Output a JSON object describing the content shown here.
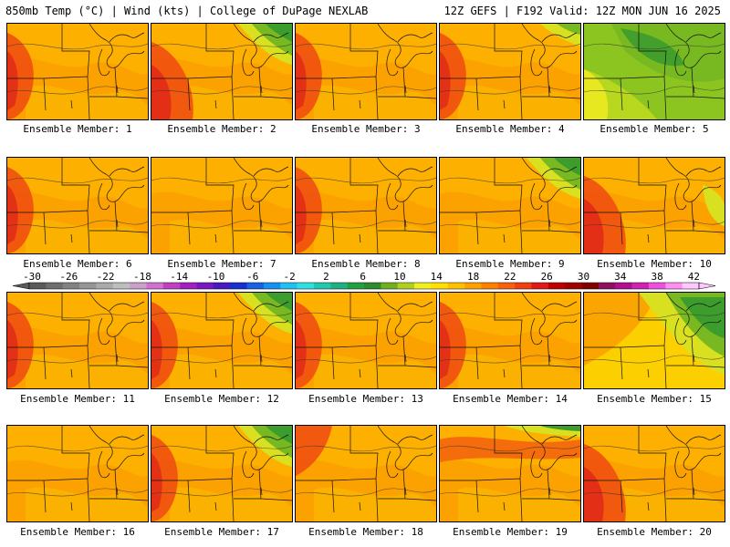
{
  "header": {
    "left": "850mb Temp (°C) | Wind (kts) | College of DuPage NEXLAB",
    "right": "12Z GEFS | F192 Valid: 12Z MON JUN 16 2025"
  },
  "panels": [
    {
      "label": "Ensemble Member: 1",
      "theme": "orange",
      "hot": "west",
      "green": "none"
    },
    {
      "label": "Ensemble Member: 2",
      "theme": "orange",
      "hot": "southwest",
      "green": "ne"
    },
    {
      "label": "Ensemble Member: 3",
      "theme": "orange",
      "hot": "west",
      "green": "none"
    },
    {
      "label": "Ensemble Member: 4",
      "theme": "orange",
      "hot": "west",
      "green": "ne-small"
    },
    {
      "label": "Ensemble Member: 5",
      "theme": "green",
      "hot": "none",
      "green": "all"
    },
    {
      "label": "Ensemble Member: 6",
      "theme": "orange",
      "hot": "west",
      "green": "none"
    },
    {
      "label": "Ensemble Member: 7",
      "theme": "orange",
      "hot": "none",
      "green": "none"
    },
    {
      "label": "Ensemble Member: 8",
      "theme": "orange",
      "hot": "west",
      "green": "none"
    },
    {
      "label": "Ensemble Member: 9",
      "theme": "orange",
      "hot": "none",
      "green": "ne"
    },
    {
      "label": "Ensemble Member: 10",
      "theme": "orange",
      "hot": "southwest",
      "green": "e-small"
    },
    {
      "label": "Ensemble Member: 11",
      "theme": "orange",
      "hot": "west",
      "green": "none"
    },
    {
      "label": "Ensemble Member: 12",
      "theme": "orange",
      "hot": "west",
      "green": "ne"
    },
    {
      "label": "Ensemble Member: 13",
      "theme": "orange",
      "hot": "west",
      "green": "none"
    },
    {
      "label": "Ensemble Member: 14",
      "theme": "orange",
      "hot": "west",
      "green": "none"
    },
    {
      "label": "Ensemble Member: 15",
      "theme": "yellow",
      "hot": "none",
      "green": "ne-big"
    },
    {
      "label": "Ensemble Member: 16",
      "theme": "orange",
      "hot": "none",
      "green": "none"
    },
    {
      "label": "Ensemble Member: 17",
      "theme": "orange",
      "hot": "west",
      "green": "ne"
    },
    {
      "label": "Ensemble Member: 18",
      "theme": "orange",
      "hot": "northwest",
      "green": "none"
    },
    {
      "label": "Ensemble Member: 19",
      "theme": "orange",
      "hot": "north",
      "green": "n"
    },
    {
      "label": "Ensemble Member: 20",
      "theme": "orange",
      "hot": "southwest",
      "green": "none"
    }
  ],
  "colorbar": {
    "labels": [
      "-30",
      "-26",
      "-22",
      "-18",
      "-14",
      "-10",
      "-6",
      "-2",
      "2",
      "6",
      "10",
      "14",
      "18",
      "22",
      "26",
      "30",
      "34",
      "38",
      "42"
    ],
    "colors": [
      "#5a5a5a",
      "#6e6e6e",
      "#828282",
      "#969696",
      "#aaaaaa",
      "#bebebe",
      "#c8a0c8",
      "#d070d0",
      "#c040c0",
      "#a020c0",
      "#7818c0",
      "#4818c0",
      "#1830d0",
      "#1860e0",
      "#1890f0",
      "#20c0f0",
      "#30e0e0",
      "#20c8b0",
      "#20b080",
      "#20a040",
      "#2c8c2c",
      "#70b020",
      "#b0d020",
      "#f0f020",
      "#ffe000",
      "#ffc000",
      "#ffa000",
      "#ff8000",
      "#f86010",
      "#f04010",
      "#e01818",
      "#c00000",
      "#a00000",
      "#800000",
      "#901060",
      "#b01090",
      "#d020b0",
      "#f050e0",
      "#ff90f0",
      "#ffc8ff"
    ]
  }
}
